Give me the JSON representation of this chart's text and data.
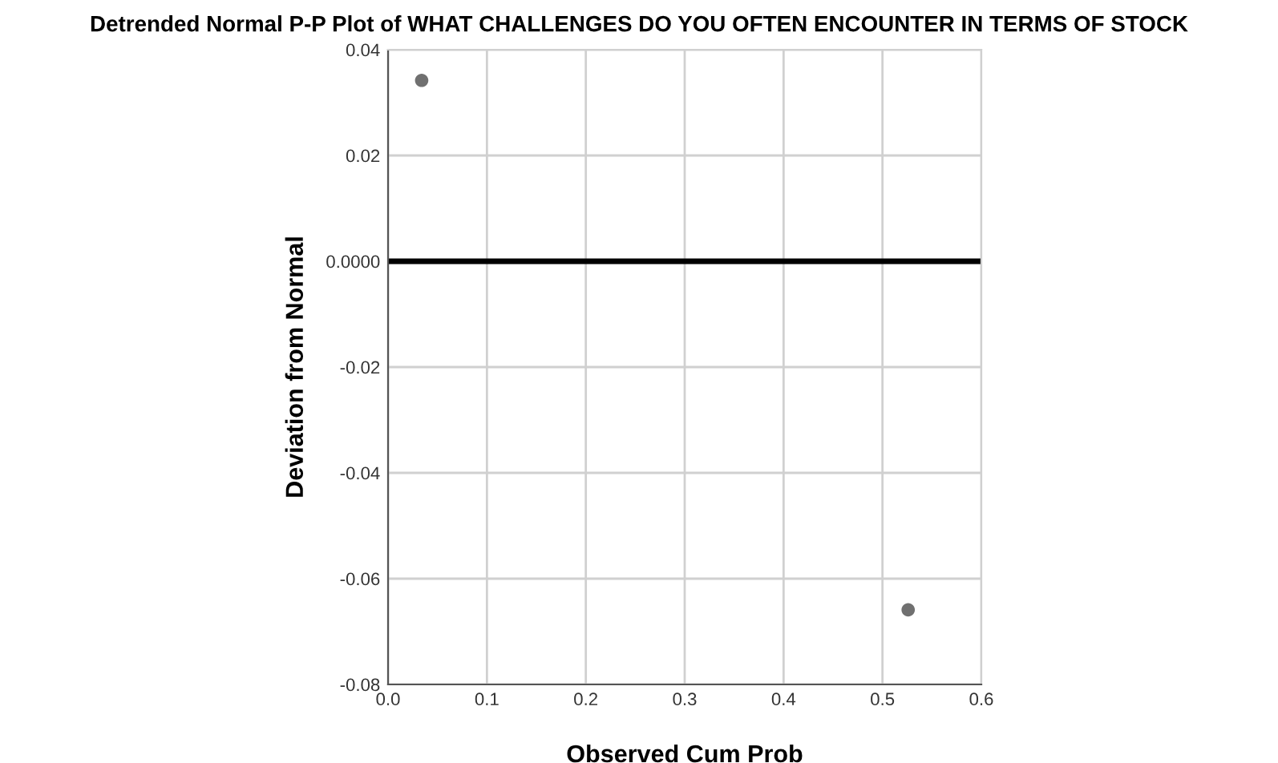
{
  "chart_data": {
    "type": "scatter",
    "title": "Detrended Normal P-P Plot of WHAT CHALLENGES DO YOU OFTEN ENCOUNTER IN TERMS OF STOCK",
    "xlabel": "Observed Cum Prob",
    "ylabel": "Deviation from Normal",
    "x": [
      0.034,
      0.526
    ],
    "values": [
      0.0342,
      -0.0659
    ],
    "color": "#707070",
    "marker": "circle",
    "xlim": [
      0.0,
      0.6
    ],
    "xticks": [
      {
        "value": 0,
        "label": "0.0"
      },
      0.1,
      0.2,
      0.3,
      0.4,
      0.5,
      0.6
    ],
    "ylim": [
      -0.08,
      0.04
    ],
    "yticks": [
      {
        "value": -0.08,
        "label": "-0.08"
      },
      {
        "value": -0.06,
        "label": "-0.06"
      },
      {
        "value": -0.04,
        "label": "-0.04"
      },
      {
        "value": -0.02,
        "label": "-0.02"
      },
      {
        "value": 0,
        "label": "0.0000"
      },
      {
        "value": 0.02,
        "label": "0.02"
      },
      {
        "value": 0.04,
        "label": "0.04"
      }
    ],
    "ref_lines": [
      {
        "axis": "y",
        "value": 0,
        "label": null,
        "color": "#000000"
      }
    ],
    "grid": true
  }
}
